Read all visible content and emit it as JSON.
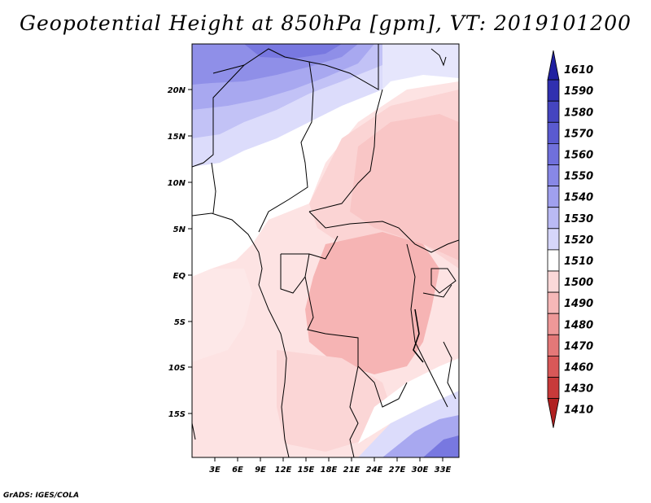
{
  "title": "Geopotential Height at 850hPa [gpm], VT: 2019101200",
  "credit": "GrADS: IGES/COLA",
  "lon_ticks": [
    "3E",
    "6E",
    "9E",
    "12E",
    "15E",
    "18E",
    "21E",
    "24E",
    "27E",
    "30E",
    "33E"
  ],
  "lat_ticks": [
    "20N",
    "15N",
    "10N",
    "5N",
    "EQ",
    "5S",
    "10S",
    "15S"
  ],
  "colorbar": {
    "levels": [
      "1610",
      "1590",
      "1580",
      "1570",
      "1560",
      "1550",
      "1540",
      "1530",
      "1520",
      "1510",
      "1500",
      "1490",
      "1480",
      "1470",
      "1460",
      "1430",
      "1410"
    ],
    "colors": [
      "#2020a0",
      "#3030b0",
      "#4545c0",
      "#5a5ad0",
      "#7070dc",
      "#8888e6",
      "#a0a0ee",
      "#babaf4",
      "#d6d6fa",
      "#ffffff",
      "#fad8d8",
      "#f6b8b8",
      "#ee9898",
      "#e47878",
      "#d85858",
      "#c83a3a",
      "#b02020"
    ]
  }
}
